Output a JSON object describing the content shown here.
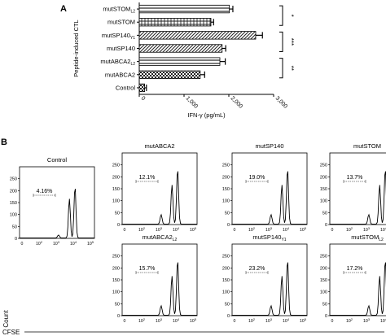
{
  "panel_labels": {
    "a": "A",
    "b": "B"
  },
  "chart_data": [
    {
      "type": "bar",
      "orientation": "horizontal",
      "ylabel": "Peptide-induced CTL",
      "xlabel": "IFN-γ (pg/mL)",
      "xlim": [
        0,
        3000
      ],
      "xticks": [
        "0",
        "1,000",
        "2,000",
        "3,000"
      ],
      "categories": [
        {
          "main": "mutSTOM",
          "sub": "L2"
        },
        {
          "main": "mutSTOM",
          "sub": ""
        },
        {
          "main": "mutSP140",
          "sub": "Y1"
        },
        {
          "main": "mutSP140",
          "sub": ""
        },
        {
          "main": "mutABCA2",
          "sub": "L2"
        },
        {
          "main": "mutABCA2",
          "sub": ""
        },
        {
          "main": "Control",
          "sub": ""
        }
      ],
      "values": [
        2010,
        1600,
        2600,
        1850,
        1800,
        1360,
        120
      ],
      "errors": [
        80,
        60,
        150,
        80,
        120,
        100,
        40
      ],
      "patterns": [
        "hstripe",
        "grid",
        "diag",
        "diag",
        "hstripe",
        "check",
        "check"
      ],
      "significance": [
        "*",
        "***",
        "**"
      ]
    },
    {
      "type": "histogram",
      "xlabel": "CFSE",
      "ylabel": "Count",
      "yticks": [
        "0",
        "50",
        "100",
        "150",
        "200",
        "250"
      ],
      "xtick_main": [
        "0",
        "10",
        "10",
        "10",
        "10"
      ],
      "xtick_exp": [
        "",
        "2",
        "3",
        "4",
        "5"
      ],
      "panels": [
        {
          "title": "Control",
          "sub": "",
          "percent": "4.16%"
        },
        {
          "title": "mutABCA2",
          "sub": "",
          "percent": "12.1%"
        },
        {
          "title": "mutSP140",
          "sub": "",
          "percent": "19.0%"
        },
        {
          "title": "mutSTOM",
          "sub": "",
          "percent": "13.7%"
        },
        {
          "title": "mutABCA2",
          "sub": "L2",
          "percent": "15.7%"
        },
        {
          "title": "mutSP140",
          "sub": "Y1",
          "percent": "23.2%"
        },
        {
          "title": "mutSTOM",
          "sub": "L2",
          "percent": "17.2%"
        }
      ]
    }
  ]
}
